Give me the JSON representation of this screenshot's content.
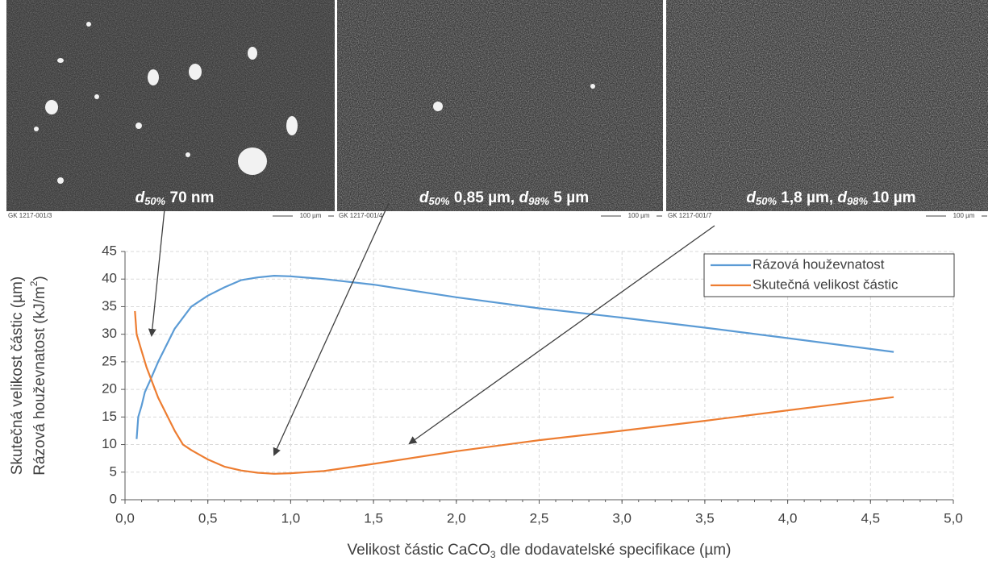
{
  "images": [
    {
      "caption": "GK 1217-001/3",
      "scale": "100 µm",
      "label": [
        "d",
        "50%",
        " 70 nm"
      ]
    },
    {
      "caption": "GK 1217-001/4",
      "scale": "100 µm",
      "label": [
        "d",
        "50%",
        " 0,85 µm, ",
        "d",
        "98%",
        " 5 µm"
      ]
    },
    {
      "caption": "GK 1217-001/7",
      "scale": "100 µm",
      "label": [
        "d",
        "50%",
        " 1,8 µm, ",
        "d",
        "98%",
        " 10 µm"
      ]
    }
  ],
  "chart_data": {
    "type": "line",
    "y_label_lines": [
      [
        "Skutečná velikost částic (µm)"
      ],
      [
        "Rázová houževnatost (kJ/m",
        "2",
        ")"
      ]
    ],
    "x_label": [
      "Velikost částic CaCO",
      "3",
      " dle dodavatelské specifikace (µm)"
    ],
    "xlim": [
      0,
      5
    ],
    "ylim": [
      0,
      45
    ],
    "xticks": [
      {
        "value": 0,
        "label": "0,0"
      },
      {
        "value": 0.5,
        "label": "0,5"
      },
      {
        "value": 1,
        "label": "1,0"
      },
      {
        "value": 1.5,
        "label": "1,5"
      },
      {
        "value": 2,
        "label": "2,0"
      },
      {
        "value": 2.5,
        "label": "2,5"
      },
      {
        "value": 3,
        "label": "3,0"
      },
      {
        "value": 3.5,
        "label": "3,5"
      },
      {
        "value": 4,
        "label": "4,0"
      },
      {
        "value": 4.5,
        "label": "4,5"
      },
      {
        "value": 5,
        "label": "5,0"
      }
    ],
    "yticks": [
      0,
      5,
      10,
      15,
      20,
      25,
      30,
      35,
      40,
      45
    ],
    "grid": true,
    "legend": "top-right",
    "series": [
      {
        "name": "Rázová houževnatost",
        "color": "#5b9bd5",
        "x": [
          0.07,
          0.08,
          0.1,
          0.12,
          0.15,
          0.2,
          0.3,
          0.4,
          0.5,
          0.6,
          0.7,
          0.8,
          0.9,
          1.0,
          1.2,
          1.5,
          2.0,
          2.5,
          3.0,
          3.5,
          4.0,
          4.64
        ],
        "values": [
          11,
          15,
          17,
          19.5,
          21.5,
          25,
          31,
          35,
          37,
          38.5,
          39.8,
          40.3,
          40.6,
          40.5,
          40,
          39,
          36.7,
          34.7,
          33,
          31.2,
          29.3,
          26.8
        ]
      },
      {
        "name": "Skutečná velikost částic",
        "color": "#ed7d31",
        "x": [
          0.06,
          0.07,
          0.1,
          0.13,
          0.2,
          0.3,
          0.35,
          0.4,
          0.5,
          0.6,
          0.7,
          0.8,
          0.9,
          1.0,
          1.2,
          1.5,
          2.0,
          2.5,
          3.0,
          3.5,
          4.0,
          4.64
        ],
        "values": [
          34.2,
          30,
          27,
          24,
          18.5,
          12.5,
          10,
          9,
          7.3,
          6,
          5.3,
          4.9,
          4.7,
          4.8,
          5.2,
          6.5,
          8.8,
          10.8,
          12.5,
          14.3,
          16.2,
          18.6
        ]
      }
    ]
  }
}
